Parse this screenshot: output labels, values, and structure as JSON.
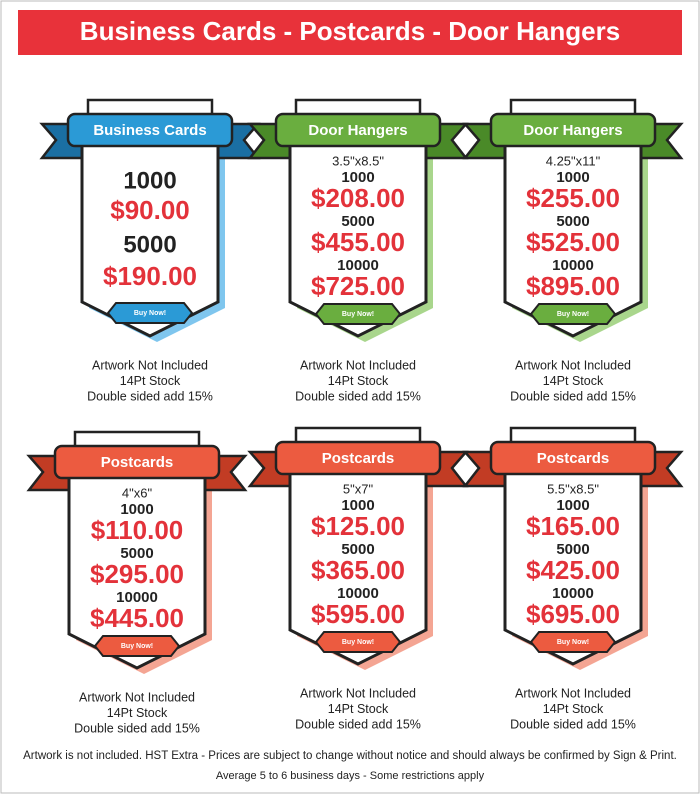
{
  "header": {
    "title": "Business Cards - Postcards - Door Hangers"
  },
  "cards": [
    {
      "ribbon": "Business Cards",
      "tiers": [
        {
          "qty": "1000",
          "price": "$90.00"
        },
        {
          "qty": "5000",
          "price": "$190.00"
        }
      ],
      "button": "Buy Now!",
      "notes": [
        "Artwork Not Included",
        "14Pt Stock",
        "Double sided add 15%"
      ]
    },
    {
      "ribbon": "Door Hangers",
      "size": "3.5\"x8.5\"",
      "tiers": [
        {
          "qty": "1000",
          "price": "$208.00"
        },
        {
          "qty": "5000",
          "price": "$455.00"
        },
        {
          "qty": "10000",
          "price": "$725.00"
        }
      ],
      "button": "Buy Now!",
      "notes": [
        "Artwork Not Included",
        "14Pt Stock",
        "Double sided add 15%"
      ]
    },
    {
      "ribbon": "Door Hangers",
      "size": "4.25\"x11\"",
      "tiers": [
        {
          "qty": "1000",
          "price": "$255.00"
        },
        {
          "qty": "5000",
          "price": "$525.00"
        },
        {
          "qty": "10000",
          "price": "$895.00"
        }
      ],
      "button": "Buy Now!",
      "notes": [
        "Artwork Not Included",
        "14Pt Stock",
        "Double sided add 15%"
      ]
    },
    {
      "ribbon": "Postcards",
      "size": "4\"x6\"",
      "tiers": [
        {
          "qty": "1000",
          "price": "$110.00"
        },
        {
          "qty": "5000",
          "price": "$295.00"
        },
        {
          "qty": "10000",
          "price": "$445.00"
        }
      ],
      "button": "Buy Now!",
      "notes": [
        "Artwork Not Included",
        "14Pt Stock",
        "Double sided add 15%"
      ]
    },
    {
      "ribbon": "Postcards",
      "size": "5\"x7\"",
      "tiers": [
        {
          "qty": "1000",
          "price": "$125.00"
        },
        {
          "qty": "5000",
          "price": "$365.00"
        },
        {
          "qty": "10000",
          "price": "$595.00"
        }
      ],
      "button": "Buy Now!",
      "notes": [
        "Artwork Not Included",
        "14Pt Stock",
        "Double sided add 15%"
      ]
    },
    {
      "ribbon": "Postcards",
      "size": "5.5\"x8.5\"",
      "tiers": [
        {
          "qty": "1000",
          "price": "$165.00"
        },
        {
          "qty": "5000",
          "price": "$425.00"
        },
        {
          "qty": "10000",
          "price": "$695.00"
        }
      ],
      "button": "Buy Now!",
      "notes": [
        "Artwork Not Included",
        "14Pt Stock",
        "Double sided add 15%"
      ]
    }
  ],
  "footer": [
    "Artwork is not included. HST Extra - Prices are subject to change without notice and should always be confirmed by Sign & Print.",
    "Average 5 to 6 business days - Some restrictions apply"
  ]
}
